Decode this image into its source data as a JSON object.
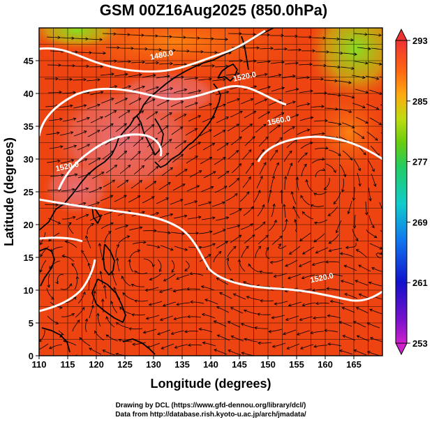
{
  "title": "GSM 00Z16Aug2025 (850.0hPa)",
  "x_axis": {
    "label": "Longitude (degrees)",
    "ticks": [
      "110",
      "115",
      "120",
      "125",
      "130",
      "135",
      "140",
      "145",
      "150",
      "155",
      "160",
      "165"
    ],
    "range": [
      110,
      170
    ]
  },
  "y_axis": {
    "label": "Latitude  (degrees)",
    "ticks": [
      "0",
      "5",
      "10",
      "15",
      "20",
      "25",
      "30",
      "35",
      "40",
      "45"
    ],
    "range": [
      0,
      50
    ]
  },
  "colorbar": {
    "ticks": [
      "293",
      "285",
      "277",
      "269",
      "261",
      "253"
    ],
    "range": [
      253,
      293
    ]
  },
  "contours": [
    {
      "label": "1480.0",
      "lon": 131.5,
      "lat": 45.5
    },
    {
      "label": "1520.0",
      "lon": 146.0,
      "lat": 42.2
    },
    {
      "label": "1560.0",
      "lon": 152.0,
      "lat": 35.5
    },
    {
      "label": "1520.0",
      "lon": 115.0,
      "lat": 28.5
    },
    {
      "label": "1520.0",
      "lon": 159.5,
      "lat": 11.5
    }
  ],
  "credits": {
    "line1": "Drawing by DCL (https://www.gfd-dennou.org/library/dcl/)",
    "line2": "Data from http://database.rish.kyoto-u.ac.jp/arch/jmadata/"
  },
  "colors": {
    "field_base": "#ee4411",
    "warm": "#e86060",
    "cool": "#99dd22",
    "contour": "#ffffff",
    "coast": "#000000"
  }
}
